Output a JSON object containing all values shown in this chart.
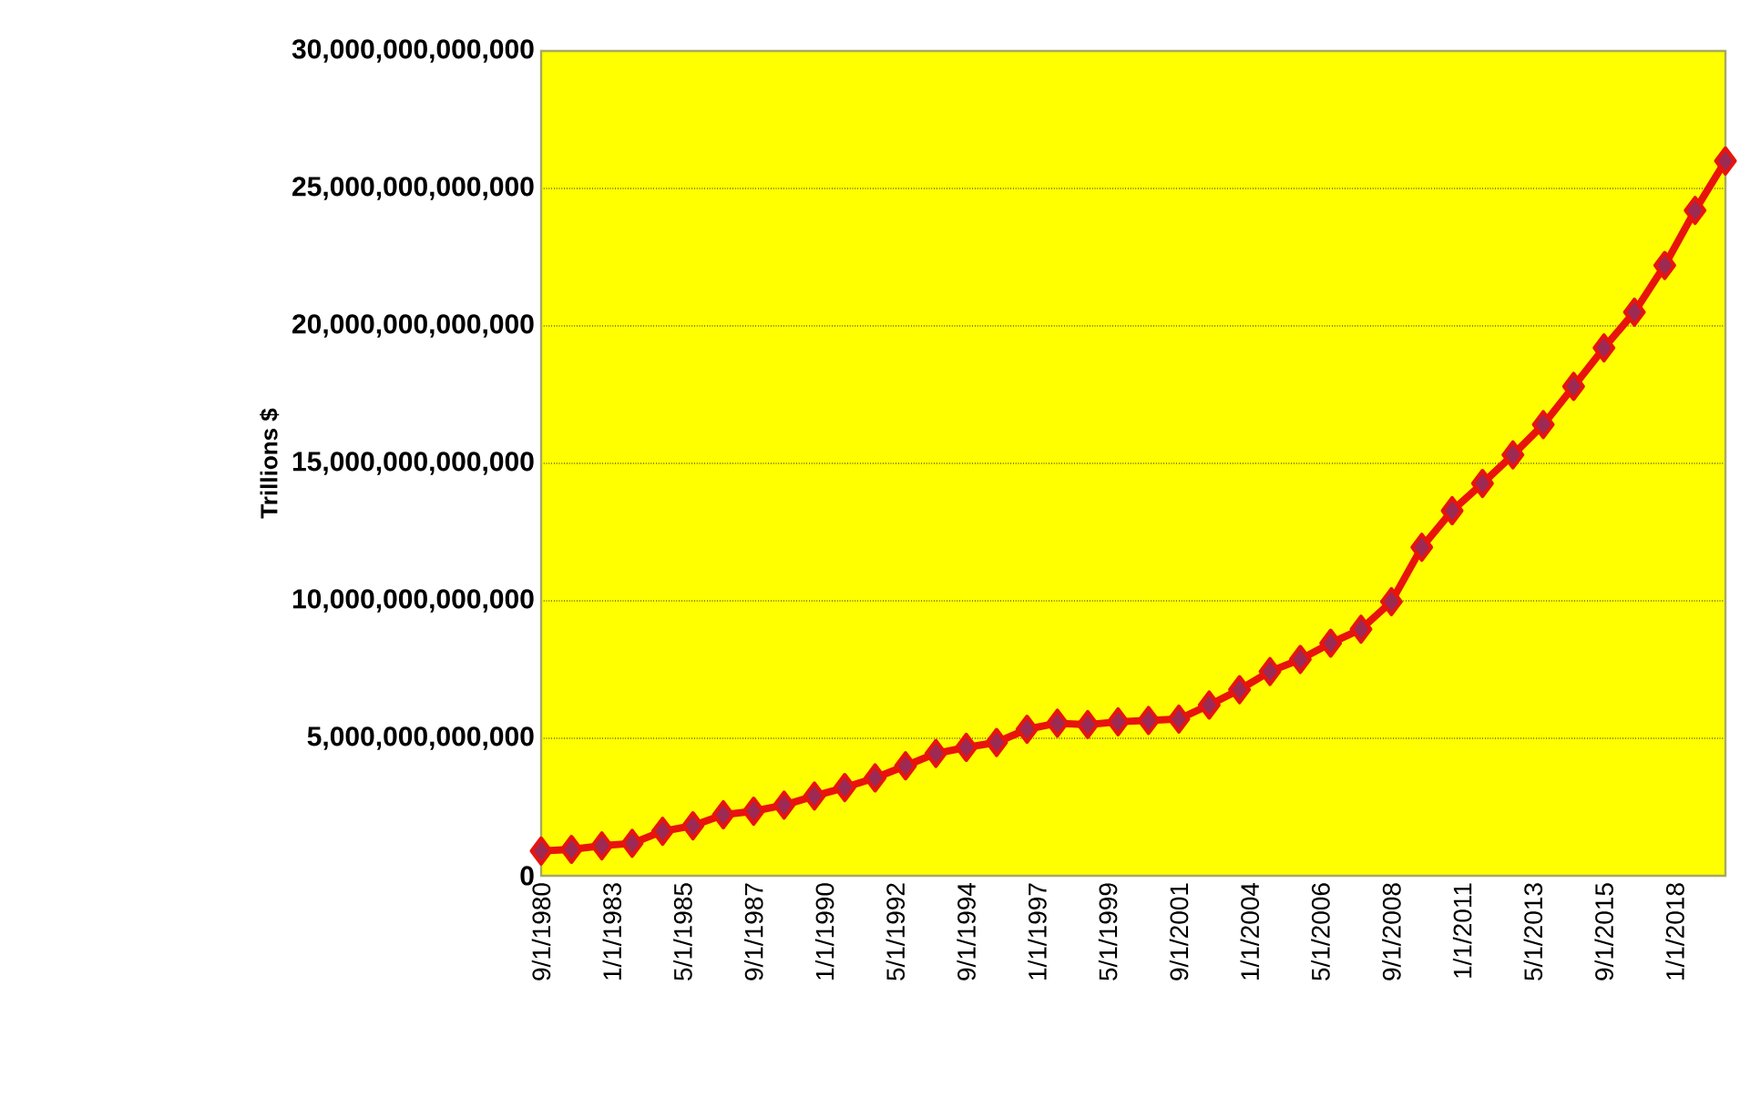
{
  "chart_data": {
    "type": "line",
    "ylabel": "Trillions $",
    "x": [
      "1980-09-01",
      "1981-09-01",
      "1982-09-01",
      "1983-09-01",
      "1984-09-01",
      "1985-09-01",
      "1986-09-01",
      "1987-09-01",
      "1988-09-01",
      "1989-09-01",
      "1990-09-01",
      "1991-09-01",
      "1992-09-01",
      "1993-09-01",
      "1994-09-01",
      "1995-09-01",
      "1996-09-01",
      "1997-09-01",
      "1998-09-01",
      "1999-09-01",
      "2000-09-01",
      "2001-09-01",
      "2002-09-01",
      "2003-09-01",
      "2004-09-01",
      "2005-09-01",
      "2006-09-01",
      "2007-09-01",
      "2008-09-01",
      "2009-09-01",
      "2010-09-01",
      "2011-09-01",
      "2012-09-01",
      "2013-09-01",
      "2014-09-01",
      "2015-09-01",
      "2016-09-01",
      "2017-09-01",
      "2018-09-01",
      "2019-09-01"
    ],
    "series": [
      {
        "color": "#e8140c",
        "values": [
          900000000000,
          960000000000,
          1090000000000,
          1180000000000,
          1620000000000,
          1820000000000,
          2220000000000,
          2350000000000,
          2570000000000,
          2900000000000,
          3210000000000,
          3560000000000,
          4000000000000,
          4450000000000,
          4670000000000,
          4850000000000,
          5330000000000,
          5550000000000,
          5500000000000,
          5600000000000,
          5650000000000,
          5700000000000,
          6210000000000,
          6770000000000,
          7430000000000,
          7870000000000,
          8460000000000,
          8970000000000,
          9970000000000,
          11950000000000,
          13280000000000,
          14270000000000,
          15310000000000,
          16410000000000,
          17800000000000,
          19200000000000,
          20500000000000,
          22200000000000,
          24200000000000,
          26000000000000
        ]
      }
    ],
    "xlim": [
      "1980-09-01",
      "2019-09-01"
    ],
    "xticks": [
      {
        "value": "1980-09-01",
        "label": "9/1/1980"
      },
      {
        "value": "1983-01-01",
        "label": "1/1/1983"
      },
      {
        "value": "1985-05-01",
        "label": "5/1/1985"
      },
      {
        "value": "1987-09-01",
        "label": "9/1/1987"
      },
      {
        "value": "1990-01-01",
        "label": "1/1/1990"
      },
      {
        "value": "1992-05-01",
        "label": "5/1/1992"
      },
      {
        "value": "1994-09-01",
        "label": "9/1/1994"
      },
      {
        "value": "1997-01-01",
        "label": "1/1/1997"
      },
      {
        "value": "1999-05-01",
        "label": "5/1/1999"
      },
      {
        "value": "2001-09-01",
        "label": "9/1/2001"
      },
      {
        "value": "2004-01-01",
        "label": "1/1/2004"
      },
      {
        "value": "2006-05-01",
        "label": "5/1/2006"
      },
      {
        "value": "2008-09-01",
        "label": "9/1/2008"
      },
      {
        "value": "2011-01-01",
        "label": "1/1/2011"
      },
      {
        "value": "2013-05-01",
        "label": "5/1/2013"
      },
      {
        "value": "2015-09-01",
        "label": "9/1/2015"
      },
      {
        "value": "2018-01-01",
        "label": "1/1/2018"
      }
    ],
    "ylim": [
      0,
      30000000000000
    ],
    "yticks": [
      0,
      {
        "value": 5000000000000,
        "label": "5,000,000,000,000"
      },
      {
        "value": 10000000000000,
        "label": "10,000,000,000,000"
      },
      {
        "value": 15000000000000,
        "label": "15,000,000,000,000"
      },
      {
        "value": 20000000000000,
        "label": "20,000,000,000,000"
      },
      {
        "value": 25000000000000,
        "label": "25,000,000,000,000"
      },
      {
        "value": 30000000000000,
        "label": "30,000,000,000,000"
      }
    ],
    "grid": "y",
    "marker": "diamond",
    "line_style": "solid"
  }
}
